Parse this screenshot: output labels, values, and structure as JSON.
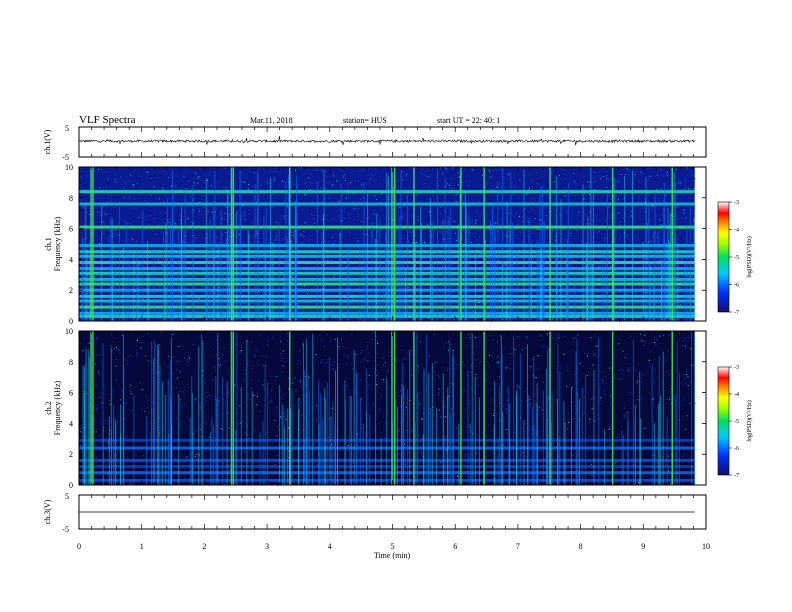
{
  "header": {
    "title": "VLF Spectra",
    "date": "Mar.11, 2018",
    "station": "station= HUS",
    "start": "start  UT =   22: 40: 1"
  },
  "chart_data": [
    {
      "type": "line",
      "panel": "ch1-waveform",
      "ylabel": "ch.1(V)",
      "xlim": [
        0,
        10
      ],
      "ylim": [
        -5,
        5
      ],
      "yticks": [
        "5",
        "-5"
      ],
      "x_end": 9.82,
      "baseline": 0.3,
      "noise_amplitude": 0.4
    },
    {
      "type": "heatmap",
      "panel": "ch1-spectrogram",
      "ylabel": "Frequency  (kHz)",
      "ylabel2": "ch.1",
      "xlim": [
        0,
        10
      ],
      "ylim": [
        0,
        10
      ],
      "yticks": [
        "0",
        "2",
        "4",
        "6",
        "8",
        "10"
      ],
      "x_end": 9.82,
      "bright_bands_khz": [
        0.3,
        0.5,
        0.9,
        1.3,
        1.6,
        2.0,
        2.4,
        2.7,
        3.1,
        3.4,
        3.8,
        4.2,
        4.5,
        4.9,
        6.1,
        7.6,
        8.4
      ],
      "strong_sferics_min": [
        0.18,
        0.21,
        2.42,
        2.45,
        3.35,
        4.98,
        5.02,
        5.33,
        6.08,
        6.45,
        7.5,
        8.5,
        9.45
      ]
    },
    {
      "type": "heatmap",
      "panel": "ch2-spectrogram",
      "ylabel": "Frequency  (kHz)",
      "ylabel2": "ch.2",
      "xlim": [
        0,
        10
      ],
      "ylim": [
        0,
        10
      ],
      "yticks": [
        "0",
        "2",
        "4",
        "6",
        "8",
        "10"
      ],
      "x_end": 9.82,
      "bright_bands_khz": [
        0.3,
        0.8,
        1.2,
        1.6,
        2.4,
        2.9
      ],
      "strong_sferics_min": [
        0.18,
        0.21,
        2.42,
        2.45,
        3.35,
        4.98,
        5.02,
        5.33,
        6.08,
        6.45,
        7.5,
        8.5,
        9.45
      ]
    },
    {
      "type": "line",
      "panel": "ch3-waveform",
      "ylabel": "ch.3(V)",
      "xlim": [
        0,
        10
      ],
      "ylim": [
        -5,
        5
      ],
      "yticks": [
        "5",
        "-5"
      ],
      "x_end": 9.82,
      "baseline": 0.0
    },
    {
      "type": "axis",
      "panel": "time-axis",
      "xlabel": "Time  (min)",
      "xticks": [
        "0",
        "1",
        "2",
        "3",
        "4",
        "5",
        "6",
        "7",
        "8",
        "9",
        "10"
      ]
    }
  ],
  "colorbars": [
    {
      "label": "log(PSD)(V²/Hz)",
      "ticks": [
        "-3",
        "-4",
        "-5",
        "-6",
        "-7"
      ],
      "range": [
        -7,
        -3
      ]
    },
    {
      "label": "log(PSD)(V²/Hz)",
      "ticks": [
        "-3",
        "-4",
        "-5",
        "-6",
        "-7"
      ],
      "range": [
        -7,
        -3
      ]
    }
  ]
}
